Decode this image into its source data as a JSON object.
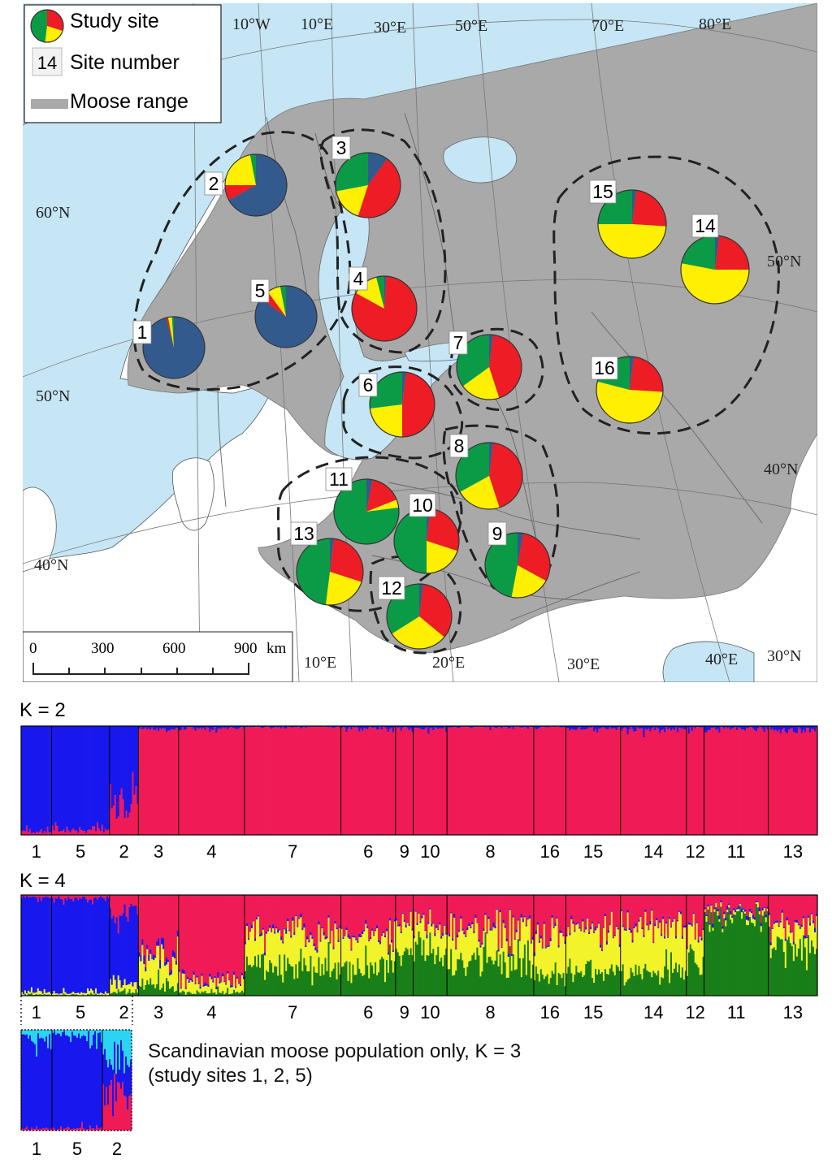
{
  "legend": {
    "study_site": "Study site",
    "site_number": "Site number",
    "site_number_example": "14",
    "moose_range": "Moose range"
  },
  "colors": {
    "sea": "#c6e6f5",
    "land": "#ffffff",
    "range": "#a9a9a9",
    "cluster_blue": "#325a8c",
    "cluster_red": "#ee1c24",
    "cluster_yellow": "#ffef00",
    "cluster_green": "#0b9b46",
    "bar_blue": "#1818ee",
    "bar_pink": "#f01a56",
    "bar_yellow": "#f3f32a",
    "bar_green": "#197f19",
    "bar_cyan": "#2ad4f2"
  },
  "grid_labels": {
    "lon": [
      "10°W",
      "10°E",
      "30°E",
      "50°E",
      "70°E",
      "80°E",
      "10°E",
      "20°E",
      "30°E",
      "40°E"
    ],
    "lat": [
      "60°N",
      "50°N",
      "40°N",
      "50°N",
      "40°N",
      "30°N"
    ]
  },
  "scale_bar": {
    "ticks": [
      "0",
      "300",
      "600",
      "900"
    ],
    "unit": "km"
  },
  "sites": [
    {
      "id": "1",
      "blue": 0.96,
      "red": 0.01,
      "yellow": 0.02,
      "green": 0.01
    },
    {
      "id": "2",
      "blue": 0.67,
      "red": 0.08,
      "yellow": 0.22,
      "green": 0.03
    },
    {
      "id": "3",
      "blue": 0.1,
      "red": 0.45,
      "yellow": 0.17,
      "green": 0.28
    },
    {
      "id": "4",
      "blue": 0.01,
      "red": 0.82,
      "yellow": 0.13,
      "green": 0.04
    },
    {
      "id": "5",
      "blue": 0.85,
      "red": 0.05,
      "yellow": 0.07,
      "green": 0.03
    },
    {
      "id": "6",
      "blue": 0.02,
      "red": 0.48,
      "yellow": 0.23,
      "green": 0.27
    },
    {
      "id": "7",
      "blue": 0.02,
      "red": 0.43,
      "yellow": 0.2,
      "green": 0.35
    },
    {
      "id": "8",
      "blue": 0.02,
      "red": 0.43,
      "yellow": 0.22,
      "green": 0.33
    },
    {
      "id": "9",
      "blue": 0.03,
      "red": 0.3,
      "yellow": 0.2,
      "green": 0.47
    },
    {
      "id": "10",
      "blue": 0.02,
      "red": 0.28,
      "yellow": 0.2,
      "green": 0.5
    },
    {
      "id": "11",
      "blue": 0.03,
      "red": 0.16,
      "yellow": 0.04,
      "green": 0.77
    },
    {
      "id": "12",
      "blue": 0.02,
      "red": 0.34,
      "yellow": 0.3,
      "green": 0.34
    },
    {
      "id": "13",
      "blue": 0.02,
      "red": 0.28,
      "yellow": 0.22,
      "green": 0.48
    },
    {
      "id": "14",
      "blue": 0.02,
      "red": 0.23,
      "yellow": 0.53,
      "green": 0.22
    },
    {
      "id": "15",
      "blue": 0.02,
      "red": 0.24,
      "yellow": 0.49,
      "green": 0.25
    },
    {
      "id": "16",
      "blue": 0.02,
      "red": 0.24,
      "yellow": 0.53,
      "green": 0.21
    }
  ],
  "structure_k2": {
    "title": "K = 2",
    "groups": [
      {
        "label": "1",
        "blue": 0.97,
        "pink": 0.03
      },
      {
        "label": "5",
        "blue": 0.96,
        "pink": 0.04
      },
      {
        "label": "2",
        "blue": 0.7,
        "pink": 0.3
      },
      {
        "label": "3",
        "blue": 0.03,
        "pink": 0.97
      },
      {
        "label": "4",
        "blue": 0.02,
        "pink": 0.98
      },
      {
        "label": "7",
        "blue": 0.01,
        "pink": 0.99
      },
      {
        "label": "6",
        "blue": 0.02,
        "pink": 0.98
      },
      {
        "label": "9",
        "blue": 0.02,
        "pink": 0.98
      },
      {
        "label": "10",
        "blue": 0.02,
        "pink": 0.98
      },
      {
        "label": "8",
        "blue": 0.01,
        "pink": 0.99
      },
      {
        "label": "16",
        "blue": 0.01,
        "pink": 0.99
      },
      {
        "label": "15",
        "blue": 0.02,
        "pink": 0.98
      },
      {
        "label": "14",
        "blue": 0.03,
        "pink": 0.97
      },
      {
        "label": "12",
        "blue": 0.02,
        "pink": 0.98
      },
      {
        "label": "11",
        "blue": 0.02,
        "pink": 0.98
      },
      {
        "label": "13",
        "blue": 0.03,
        "pink": 0.97
      }
    ]
  },
  "structure_k4": {
    "title": "K = 4",
    "groups": [
      {
        "label": "1",
        "blue": 0.95,
        "pink": 0.02,
        "yellow": 0.02,
        "green": 0.01
      },
      {
        "label": "5",
        "blue": 0.94,
        "pink": 0.03,
        "yellow": 0.02,
        "green": 0.01
      },
      {
        "label": "2",
        "blue": 0.65,
        "pink": 0.2,
        "yellow": 0.1,
        "green": 0.05
      },
      {
        "label": "3",
        "blue": 0.05,
        "pink": 0.6,
        "yellow": 0.25,
        "green": 0.1
      },
      {
        "label": "4",
        "blue": 0.02,
        "pink": 0.85,
        "yellow": 0.1,
        "green": 0.03
      },
      {
        "label": "7",
        "blue": 0.02,
        "pink": 0.35,
        "yellow": 0.35,
        "green": 0.28
      },
      {
        "label": "6",
        "blue": 0.02,
        "pink": 0.4,
        "yellow": 0.3,
        "green": 0.28
      },
      {
        "label": "9",
        "blue": 0.02,
        "pink": 0.3,
        "yellow": 0.3,
        "green": 0.38
      },
      {
        "label": "10",
        "blue": 0.02,
        "pink": 0.3,
        "yellow": 0.25,
        "green": 0.43
      },
      {
        "label": "8",
        "blue": 0.02,
        "pink": 0.35,
        "yellow": 0.3,
        "green": 0.33
      },
      {
        "label": "16",
        "blue": 0.02,
        "pink": 0.4,
        "yellow": 0.4,
        "green": 0.18
      },
      {
        "label": "15",
        "blue": 0.02,
        "pink": 0.3,
        "yellow": 0.45,
        "green": 0.23
      },
      {
        "label": "14",
        "blue": 0.02,
        "pink": 0.3,
        "yellow": 0.45,
        "green": 0.23
      },
      {
        "label": "12",
        "blue": 0.02,
        "pink": 0.35,
        "yellow": 0.25,
        "green": 0.38
      },
      {
        "label": "11",
        "blue": 0.02,
        "pink": 0.12,
        "yellow": 0.04,
        "green": 0.82
      },
      {
        "label": "13",
        "blue": 0.02,
        "pink": 0.3,
        "yellow": 0.2,
        "green": 0.48
      }
    ]
  },
  "structure_k3": {
    "caption_line1": "Scandinavian moose population only, K = 3",
    "caption_line2": "(study sites 1, 2, 5)",
    "groups": [
      {
        "label": "1",
        "blue": 0.9,
        "cyan": 0.08,
        "pink": 0.02
      },
      {
        "label": "5",
        "blue": 0.93,
        "cyan": 0.05,
        "pink": 0.02
      },
      {
        "label": "2",
        "blue": 0.3,
        "cyan": 0.3,
        "pink": 0.4
      }
    ]
  }
}
